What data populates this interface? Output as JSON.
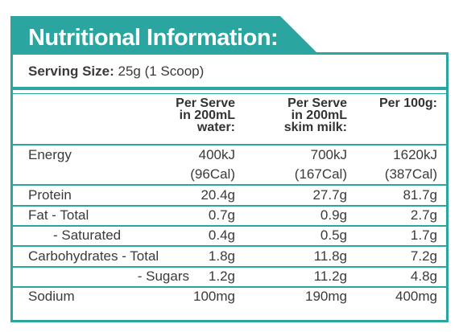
{
  "header": {
    "title": "Nutritional Information:"
  },
  "serving": {
    "label": "Serving Size:",
    "value": "25g (1 Scoop)"
  },
  "table": {
    "columns": [
      [
        "Per Serve",
        "in 200mL",
        "water:"
      ],
      [
        "Per Serve",
        "in 200mL",
        "skim milk:"
      ],
      [
        "Per 100g:"
      ]
    ],
    "rows": [
      {
        "label": "Energy",
        "values": [
          "400kJ",
          "700kJ",
          "1620kJ"
        ]
      },
      {
        "values": [
          "(96Cal)",
          "(167Cal)",
          "(387Cal)"
        ]
      },
      {
        "label": "Protein",
        "values": [
          "20.4g",
          "27.7g",
          "81.7g"
        ]
      },
      {
        "label": "Fat - Total",
        "values": [
          "0.7g",
          "0.9g",
          "2.7g"
        ]
      },
      {
        "label": "- Saturated",
        "values": [
          "0.4g",
          "0.5g",
          "1.7g"
        ]
      },
      {
        "label": "Carbohydrates - Total",
        "values": [
          "1.8g",
          "11.8g",
          "7.2g"
        ]
      },
      {
        "label": "- Sugars",
        "values": [
          "1.2g",
          "11.2g",
          "4.8g"
        ]
      },
      {
        "label": "Sodium",
        "values": [
          "100mg",
          "190mg",
          "400mg"
        ]
      }
    ]
  }
}
